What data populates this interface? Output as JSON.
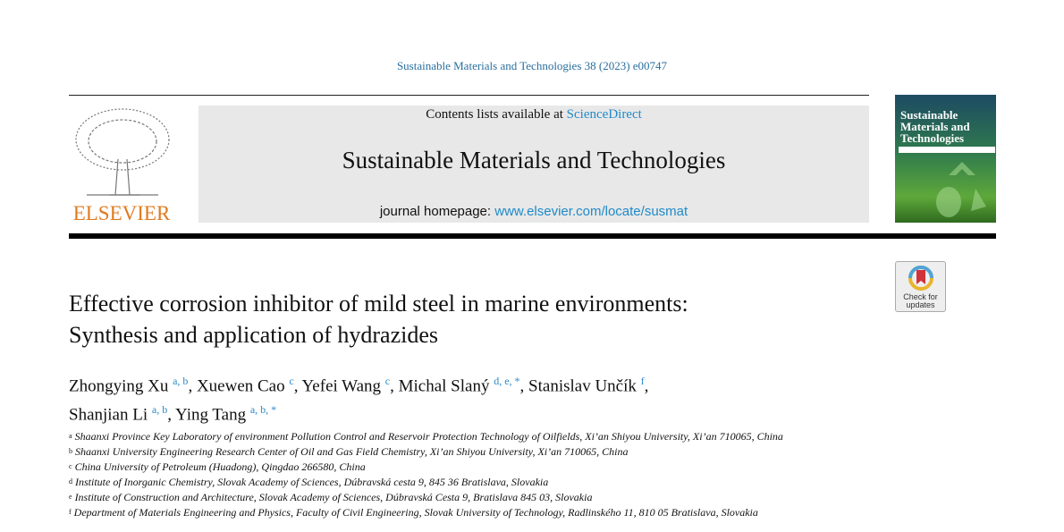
{
  "journal_ref": "Sustainable Materials and Technologies 38 (2023) e00747",
  "publisher": "ELSEVIER",
  "header": {
    "contents_prefix": "Contents lists available at ",
    "contents_link": "ScienceDirect",
    "journal_title": "Sustainable Materials and Technologies",
    "homepage_prefix": "journal homepage: ",
    "homepage_link": "www.elsevier.com/locate/susmat"
  },
  "cover": {
    "title_lines": [
      "Sustainable",
      "Materials and",
      "Technologies"
    ]
  },
  "check_updates": {
    "line1": "Check for",
    "line2": "updates"
  },
  "article": {
    "title_lines": [
      "Effective corrosion inhibitor of mild steel in marine environments:",
      "Synthesis and application of hydrazides"
    ],
    "authors": [
      {
        "name": "Zhongying Xu",
        "sup": "a, b",
        "sep": ", "
      },
      {
        "name": "Xuewen Cao",
        "sup": "c",
        "sep": ", "
      },
      {
        "name": "Yefei Wang",
        "sup": "c",
        "sep": ", "
      },
      {
        "name": "Michal Slaný",
        "sup": "d, e, *",
        "sep": ", "
      },
      {
        "name": "Stanislav Unčík",
        "sup": "f",
        "sep": ","
      },
      {
        "name": "Shanjian Li",
        "sup": "a, b",
        "sep": ", "
      },
      {
        "name": "Ying Tang",
        "sup": "a, b, *",
        "sep": ""
      }
    ],
    "affiliations": [
      {
        "label": "a",
        "text": "Shaanxi Province Key Laboratory of environment Pollution Control and Reservoir Protection Technology of Oilfields, Xi’an Shiyou University, Xi’an 710065, China"
      },
      {
        "label": "b",
        "text": "Shaanxi University Engineering Research Center of Oil and Gas Field Chemistry, Xi’an Shiyou University, Xi’an 710065, China"
      },
      {
        "label": "c",
        "text": "China University of Petroleum (Huadong), Qingdao 266580, China"
      },
      {
        "label": "d",
        "text": "Institute of Inorganic Chemistry, Slovak Academy of Sciences, Dúbravská cesta 9, 845 36 Bratislava, Slovakia"
      },
      {
        "label": "e",
        "text": "Institute of Construction and Architecture, Slovak Academy of Sciences, Dúbravská Cesta 9, Bratislava 845 03, Slovakia"
      },
      {
        "label": "f",
        "text": "Department of Materials Engineering and Physics, Faculty of Civil Engineering, Slovak University of Technology, Radlinského 11, 810 05 Bratislava, Slovakia"
      }
    ]
  },
  "colors": {
    "link": "#1f8ac9",
    "elsevier_orange": "#e07a1f"
  }
}
